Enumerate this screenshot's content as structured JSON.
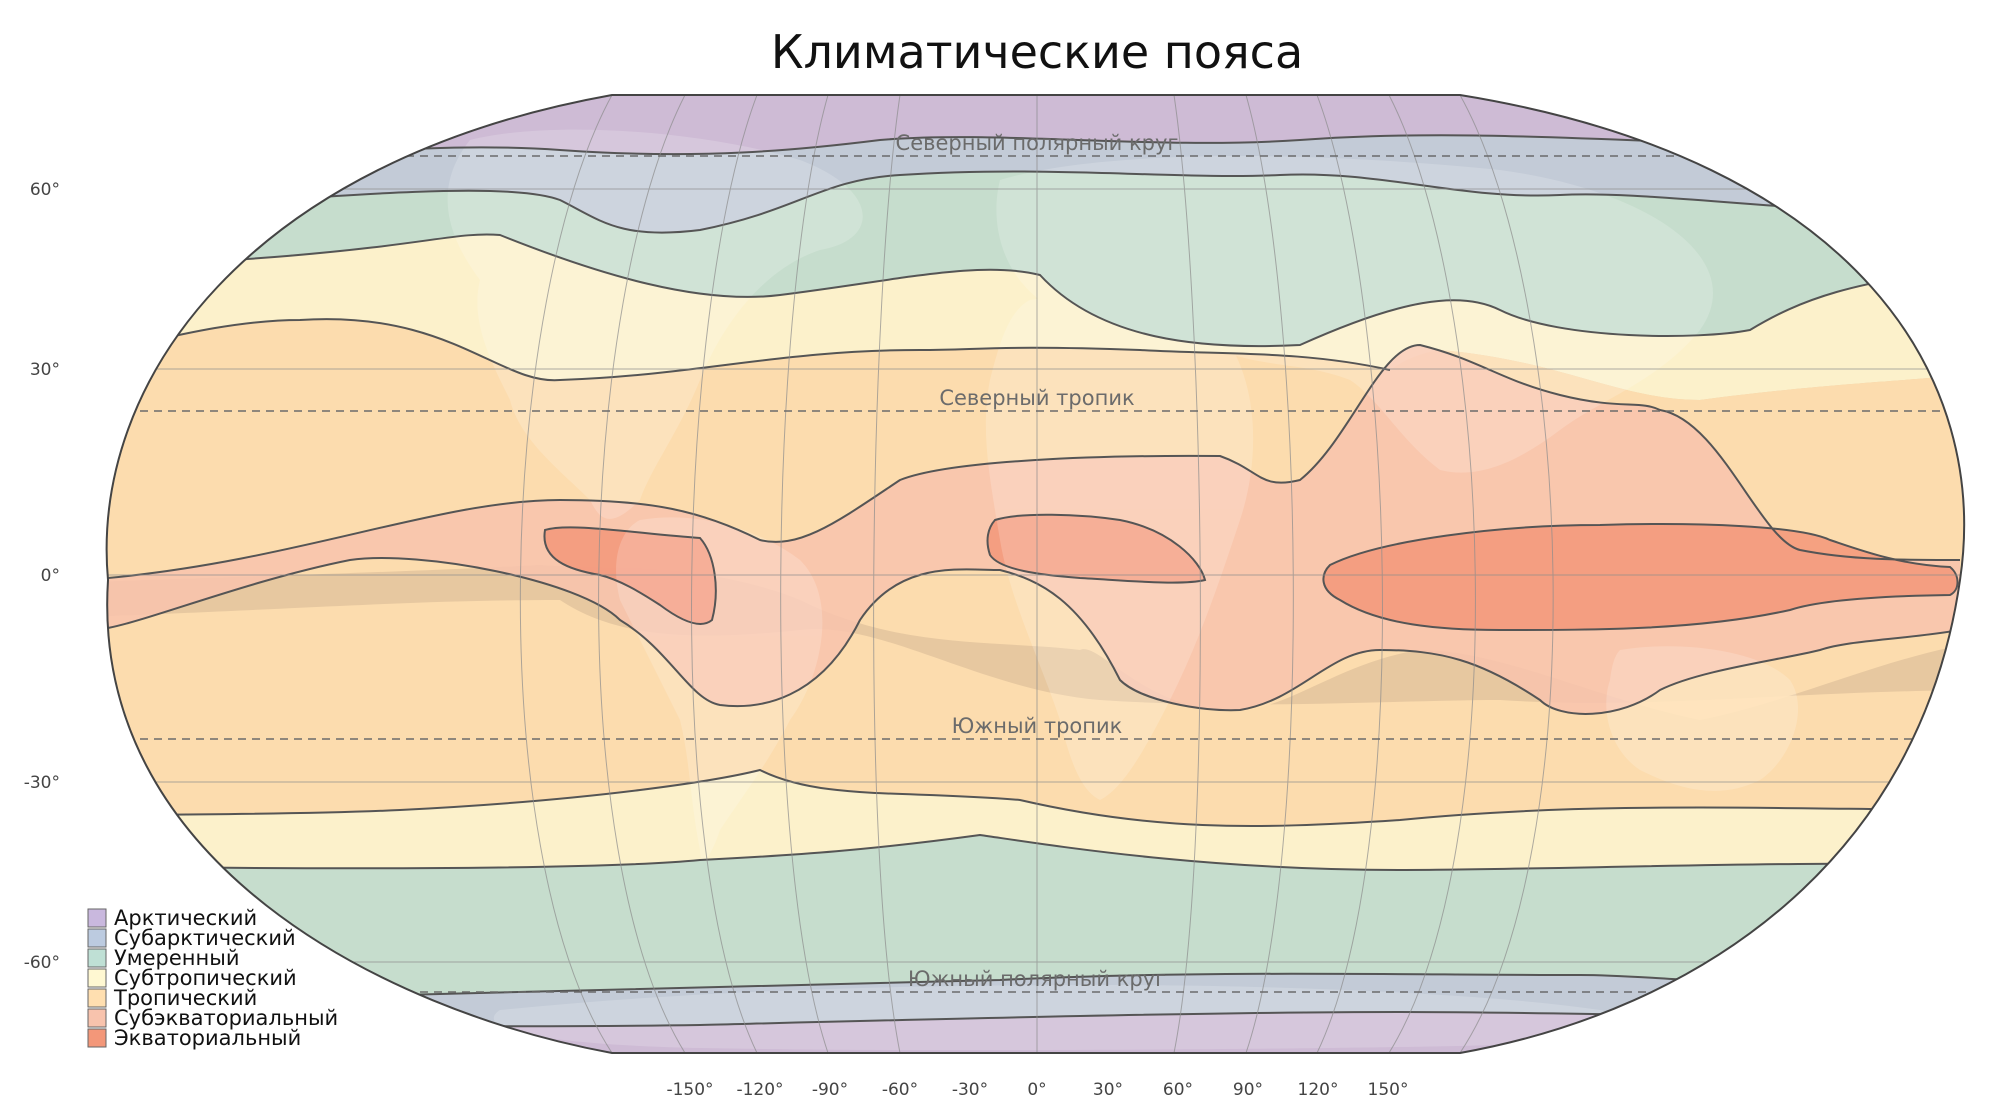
{
  "title": "Климатические пояса",
  "zones": [
    {
      "key": "arctic",
      "label": "Арктический",
      "color": "#c9b8de"
    },
    {
      "key": "subarctic",
      "label": "Субарктический",
      "color": "#bccbe0"
    },
    {
      "key": "temperate",
      "label": "Умеренный",
      "color": "#bfe0d5"
    },
    {
      "key": "subtropical",
      "label": "Субтропический",
      "color": "#fff8d2"
    },
    {
      "key": "tropical",
      "label": "Тропический",
      "color": "#ffdfb0"
    },
    {
      "key": "subequatorial",
      "label": "Субэкваториальный",
      "color": "#f8c3ad"
    },
    {
      "key": "equatorial",
      "label": "Экваториальный",
      "color": "#f39779"
    }
  ],
  "circle_labels": {
    "arctic_circle": "Северный полярный круг",
    "tropic_cancer": "Северный тропик",
    "tropic_capricorn": "Южный тропик",
    "antarctic_circle": "Южный полярный круг"
  },
  "lat_ticks": [
    "60°",
    "30°",
    "0°",
    "-30°",
    "-60°"
  ],
  "lon_ticks": [
    "-150°",
    "-120°",
    "-90°",
    "-60°",
    "-30°",
    "0°",
    "30°",
    "60°",
    "90°",
    "120°",
    "150°"
  ],
  "colors": {
    "ocean_overlay": "#c9a978",
    "border": "#555555",
    "grid": "#9a9a9a"
  }
}
